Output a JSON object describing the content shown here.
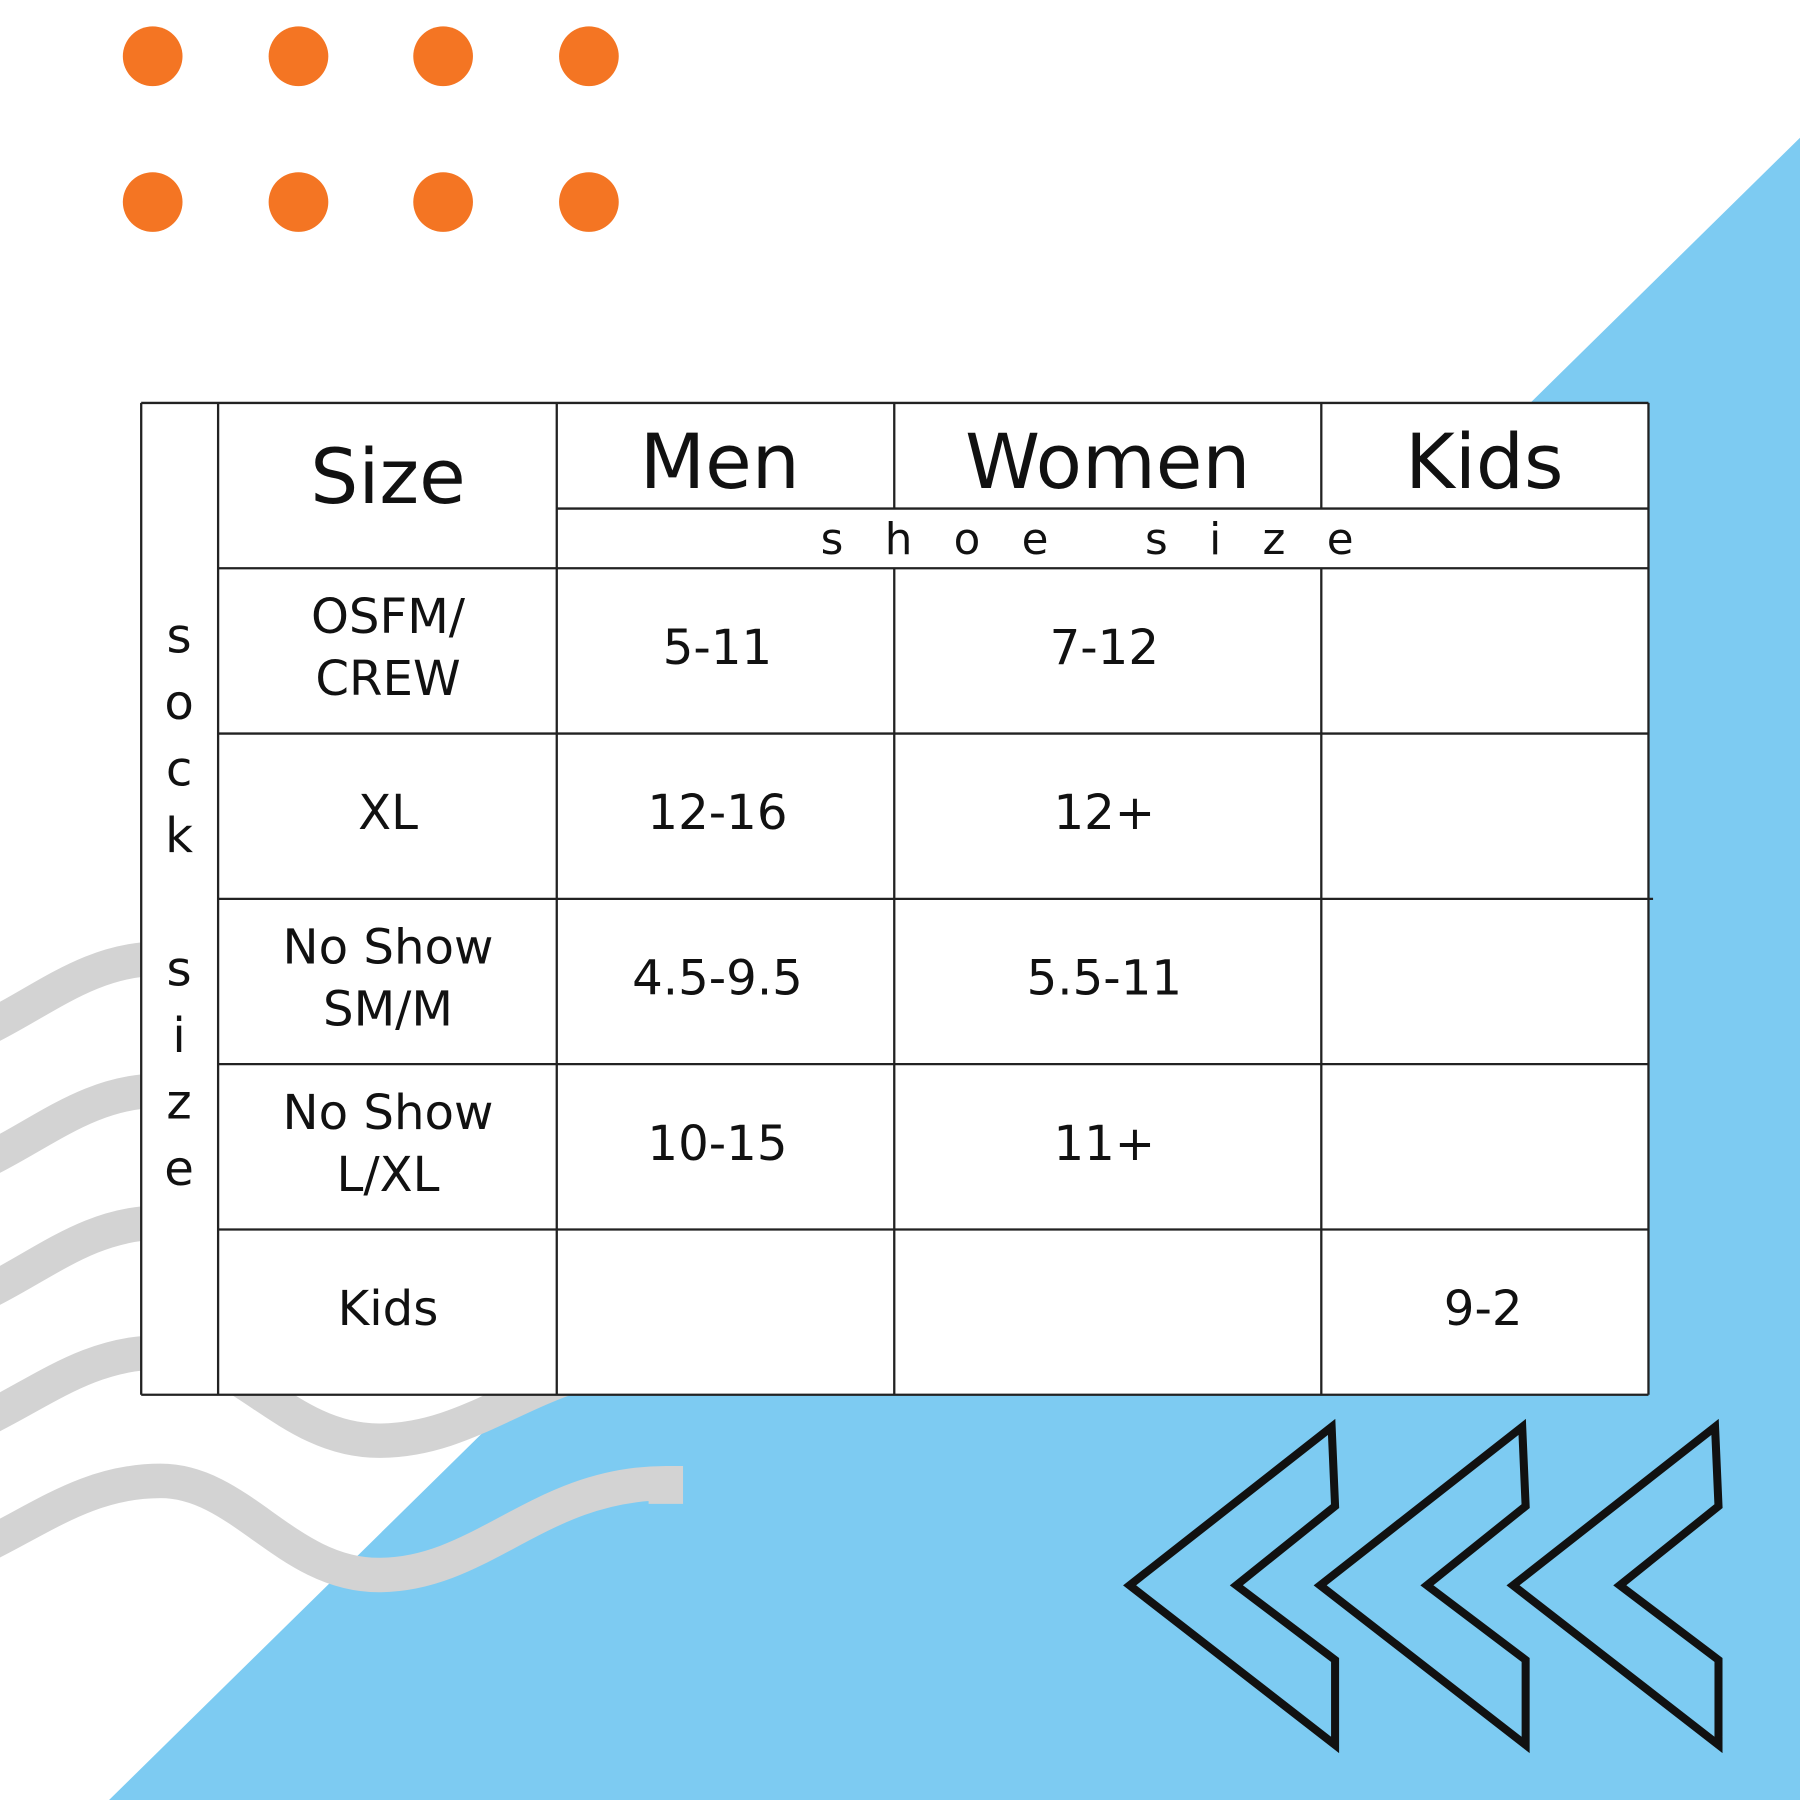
{
  "table": {
    "side_label": "sock size",
    "header": [
      "Size",
      "Men",
      "Women",
      "Kids"
    ],
    "subheader": "shoe size",
    "rows": [
      {
        "size": [
          "OSFM/",
          "CREW"
        ],
        "men": "5-11",
        "women": "7-12"
      },
      {
        "size": [
          "XL"
        ],
        "men": "12-16",
        "women": "12+"
      },
      {
        "size": [
          "No Show",
          "SM/M"
        ],
        "men": "4.5-9.5",
        "women": "5.5-11"
      },
      {
        "size": [
          "No Show",
          "L/XL"
        ],
        "men": "10-15",
        "women": "11+"
      },
      {
        "size": [
          "Kids"
        ],
        "kids": "9-2"
      }
    ]
  }
}
